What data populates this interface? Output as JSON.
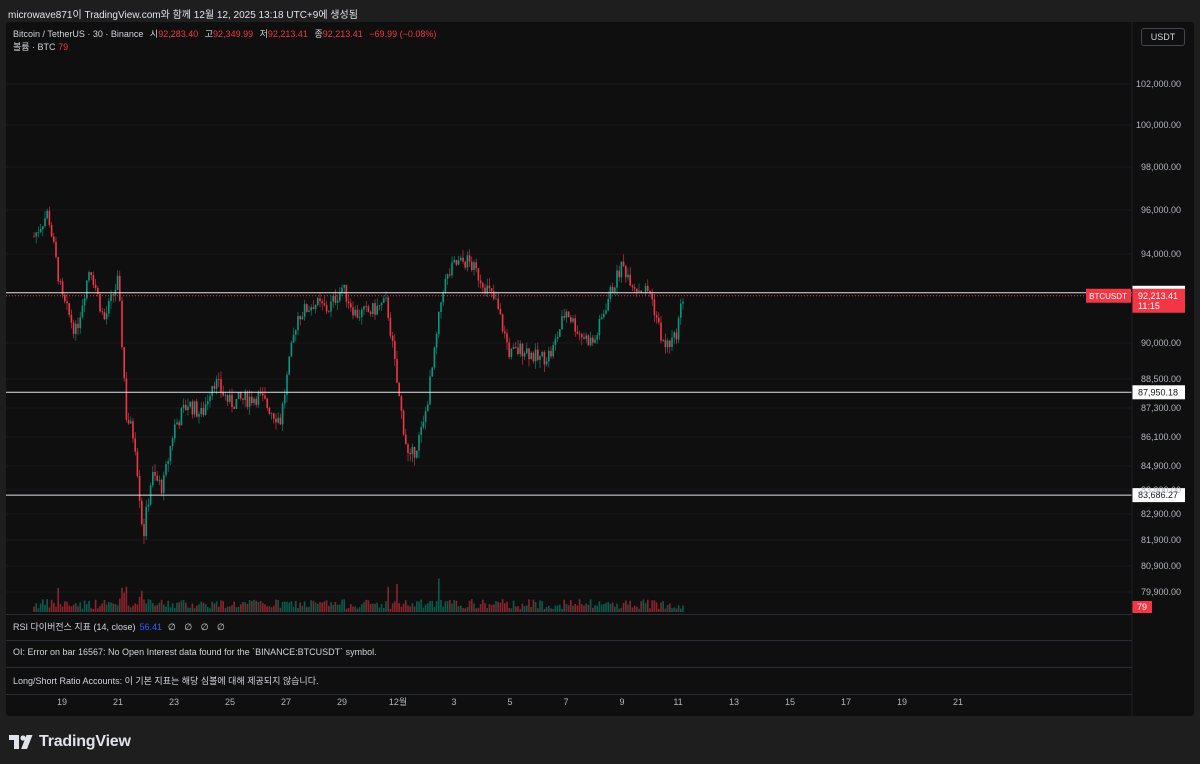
{
  "header": {
    "caption": "microwave871이 TradingView.com와 함께 12월 12, 2025 13:18 UTC+9에 생성됨"
  },
  "legend": {
    "symbol": "Bitcoin / TetherUS · 30 · Binance",
    "open_label": "시",
    "open": "92,283.40",
    "high_label": "고",
    "high": "92,349.99",
    "low_label": "저",
    "low": "92,213.41",
    "close_label": "종",
    "close": "92,213.41",
    "change": "−69.99 (−0.08%)",
    "volume_label": "볼륨 · BTC",
    "volume": "79"
  },
  "currency": "USDT",
  "price_axis": {
    "labels": [
      "102,000.00",
      "100,000.00",
      "98,000.00",
      "96,000.00",
      "94,000.00",
      "90,000.00",
      "88,500.00",
      "87,300.00",
      "86,100.00",
      "84,900.00",
      "83,900.00",
      "82,900.00",
      "81,900.00",
      "80,900.00",
      "79,900.00"
    ],
    "line_upper": "92,256.19",
    "line_mid": "87,950.18",
    "line_low": "83,686.27",
    "current_symbol": "BTCUSDT",
    "current_price": "92,213.41",
    "countdown": "11:15",
    "volume_tag": "79"
  },
  "panes": {
    "rsi_label": "RSI 다이버전스 지표 (14, close)",
    "rsi_value": "56.41",
    "rsi_extra": "∅ ∅ ∅ ∅",
    "oi_error": "OI: Error on bar 16567: No Open Interest data found for the `BINANCE:BTCUSDT` symbol.",
    "ls_label": "Long/Short Ratio Accounts:",
    "ls_message": "이 기본 지표는 해당 심볼에 대해 제공되지 않습니다."
  },
  "time_axis": [
    "19",
    "21",
    "23",
    "25",
    "27",
    "29",
    "12월",
    "3",
    "5",
    "7",
    "9",
    "11",
    "13",
    "15",
    "17",
    "19",
    "21"
  ],
  "colors": {
    "up": "#089981",
    "down": "#f23645",
    "background": "#0f0f0f"
  },
  "brand": {
    "name": "TradingView",
    "icon": "tradingview-logo-icon"
  },
  "chart_data": {
    "type": "candlestick",
    "title": "Bitcoin / TetherUS · 30 · Binance",
    "interval": "30m",
    "x_dates": [
      "19",
      "21",
      "23",
      "25",
      "27",
      "29",
      "12월",
      "3",
      "5",
      "7",
      "9",
      "11",
      "13"
    ],
    "close_path": [
      [
        "18",
        94800
      ],
      [
        "18.5",
        95900
      ],
      [
        "19",
        92000
      ],
      [
        "19.5",
        90500
      ],
      [
        "20",
        93500
      ],
      [
        "20.5",
        91000
      ],
      [
        "21",
        92800
      ],
      [
        "21.3",
        87000
      ],
      [
        "21.6",
        86000
      ],
      [
        "21.9",
        82000
      ],
      [
        "22.2",
        84500
      ],
      [
        "22.6",
        84000
      ],
      [
        "23",
        86500
      ],
      [
        "23.5",
        87500
      ],
      [
        "24",
        87000
      ],
      [
        "24.4",
        88500
      ],
      [
        "25",
        87500
      ],
      [
        "26",
        87800
      ],
      [
        "26.8",
        86800
      ],
      [
        "27.4",
        91200
      ],
      [
        "28",
        91800
      ],
      [
        "28.5",
        91500
      ],
      [
        "29",
        92500
      ],
      [
        "29.5",
        91300
      ],
      [
        "30",
        91400
      ],
      [
        "30.6",
        91800
      ],
      [
        "1",
        88000
      ],
      [
        "1.4",
        85000
      ],
      [
        "1.9",
        86500
      ],
      [
        "2.3",
        89500
      ],
      [
        "2.6",
        92500
      ],
      [
        "3",
        93500
      ],
      [
        "3.5",
        93700
      ],
      [
        "4",
        92800
      ],
      [
        "4.5",
        91800
      ],
      [
        "5",
        89500
      ],
      [
        "5.5",
        89800
      ],
      [
        "6",
        89300
      ],
      [
        "6.5",
        89600
      ],
      [
        "7",
        91500
      ],
      [
        "7.5",
        90400
      ],
      [
        "8",
        90000
      ],
      [
        "8.5",
        92000
      ],
      [
        "9",
        93500
      ],
      [
        "9.5",
        92500
      ],
      [
        "10",
        92300
      ],
      [
        "10.5",
        89800
      ],
      [
        "10.9",
        90200
      ],
      [
        "11.2",
        92213.41
      ]
    ],
    "horizontal_lines": [
      92256.19,
      87950.18,
      83686.27
    ],
    "y_axis_labels": [
      "102,000.00",
      "100,000.00",
      "98,000.00",
      "96,000.00",
      "94,000.00",
      "90,000.00",
      "88,500.00",
      "87,300.00",
      "86,100.00",
      "84,900.00",
      "83,900.00",
      "82,900.00",
      "81,900.00",
      "80,900.00",
      "79,900.00"
    ]
  }
}
